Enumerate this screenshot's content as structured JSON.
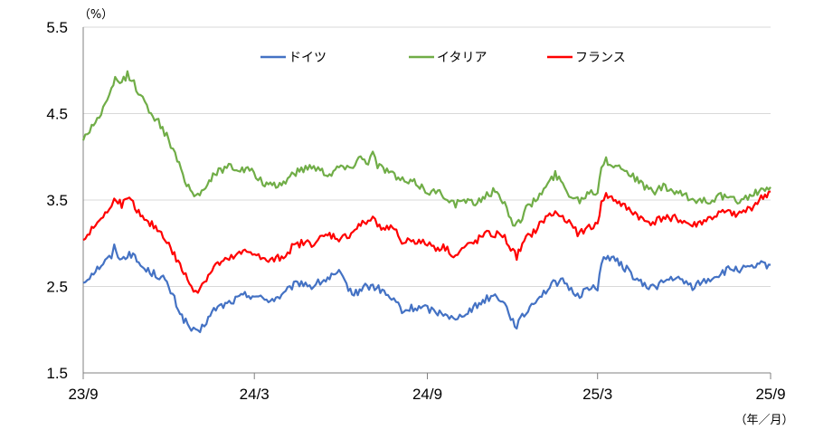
{
  "chart_data": {
    "type": "line",
    "y_unit": "（%）",
    "x_unit": "（年／月）",
    "ylim": [
      1.5,
      5.5
    ],
    "yticks": [
      "5.5",
      "4.5",
      "3.5",
      "2.5",
      "1.5"
    ],
    "x_range": [
      "2023-09-01",
      "2025-09-01"
    ],
    "xticks": [
      {
        "date": "2023-09-01",
        "label": "23/9"
      },
      {
        "date": "2024-03-01",
        "label": "24/3"
      },
      {
        "date": "2024-09-01",
        "label": "24/9"
      },
      {
        "date": "2025-03-01",
        "label": "25/3"
      },
      {
        "date": "2025-09-01",
        "label": "25/9"
      }
    ],
    "grid": true,
    "legend_position": "top-center",
    "series": [
      {
        "name": "ドイツ",
        "color": "#4472C4",
        "points": [
          [
            "2023-09-01",
            2.55
          ],
          [
            "2023-09-10",
            2.65
          ],
          [
            "2023-09-20",
            2.75
          ],
          [
            "2023-10-01",
            2.85
          ],
          [
            "2023-10-04",
            2.95
          ],
          [
            "2023-10-12",
            2.8
          ],
          [
            "2023-10-20",
            2.9
          ],
          [
            "2023-10-28",
            2.8
          ],
          [
            "2023-11-05",
            2.7
          ],
          [
            "2023-11-15",
            2.65
          ],
          [
            "2023-11-25",
            2.6
          ],
          [
            "2023-12-05",
            2.4
          ],
          [
            "2023-12-15",
            2.15
          ],
          [
            "2023-12-25",
            2.0
          ],
          [
            "2024-01-01",
            1.95
          ],
          [
            "2024-01-10",
            2.1
          ],
          [
            "2024-01-20",
            2.25
          ],
          [
            "2024-02-01",
            2.3
          ],
          [
            "2024-02-10",
            2.35
          ],
          [
            "2024-02-20",
            2.4
          ],
          [
            "2024-03-01",
            2.4
          ],
          [
            "2024-03-10",
            2.35
          ],
          [
            "2024-03-20",
            2.35
          ],
          [
            "2024-04-01",
            2.4
          ],
          [
            "2024-04-10",
            2.5
          ],
          [
            "2024-04-20",
            2.55
          ],
          [
            "2024-05-01",
            2.5
          ],
          [
            "2024-05-10",
            2.55
          ],
          [
            "2024-05-20",
            2.6
          ],
          [
            "2024-05-30",
            2.65
          ],
          [
            "2024-06-05",
            2.55
          ],
          [
            "2024-06-15",
            2.4
          ],
          [
            "2024-06-25",
            2.5
          ],
          [
            "2024-07-05",
            2.5
          ],
          [
            "2024-07-15",
            2.45
          ],
          [
            "2024-07-25",
            2.35
          ],
          [
            "2024-08-01",
            2.3
          ],
          [
            "2024-08-05",
            2.2
          ],
          [
            "2024-08-15",
            2.25
          ],
          [
            "2024-08-25",
            2.25
          ],
          [
            "2024-09-01",
            2.25
          ],
          [
            "2024-09-10",
            2.2
          ],
          [
            "2024-09-20",
            2.2
          ],
          [
            "2024-10-01",
            2.1
          ],
          [
            "2024-10-10",
            2.2
          ],
          [
            "2024-10-20",
            2.25
          ],
          [
            "2024-11-01",
            2.35
          ],
          [
            "2024-11-10",
            2.4
          ],
          [
            "2024-11-20",
            2.35
          ],
          [
            "2024-12-01",
            2.1
          ],
          [
            "2024-12-05",
            2.05
          ],
          [
            "2024-12-15",
            2.2
          ],
          [
            "2024-12-25",
            2.35
          ],
          [
            "2025-01-05",
            2.45
          ],
          [
            "2025-01-15",
            2.55
          ],
          [
            "2025-01-25",
            2.55
          ],
          [
            "2025-02-01",
            2.45
          ],
          [
            "2025-02-10",
            2.4
          ],
          [
            "2025-02-20",
            2.5
          ],
          [
            "2025-03-01",
            2.45
          ],
          [
            "2025-03-05",
            2.8
          ],
          [
            "2025-03-10",
            2.85
          ],
          [
            "2025-03-20",
            2.8
          ],
          [
            "2025-04-01",
            2.7
          ],
          [
            "2025-04-10",
            2.6
          ],
          [
            "2025-04-20",
            2.5
          ],
          [
            "2025-05-01",
            2.5
          ],
          [
            "2025-05-10",
            2.55
          ],
          [
            "2025-05-20",
            2.6
          ],
          [
            "2025-06-01",
            2.55
          ],
          [
            "2025-06-10",
            2.5
          ],
          [
            "2025-06-20",
            2.55
          ],
          [
            "2025-07-01",
            2.6
          ],
          [
            "2025-07-10",
            2.65
          ],
          [
            "2025-07-20",
            2.7
          ],
          [
            "2025-08-01",
            2.7
          ],
          [
            "2025-08-10",
            2.7
          ],
          [
            "2025-08-20",
            2.75
          ],
          [
            "2025-09-01",
            2.75
          ]
        ]
      },
      {
        "name": "イタリア",
        "color": "#70AD47",
        "points": [
          [
            "2023-09-01",
            4.2
          ],
          [
            "2023-09-10",
            4.35
          ],
          [
            "2023-09-20",
            4.5
          ],
          [
            "2023-10-01",
            4.75
          ],
          [
            "2023-10-05",
            4.9
          ],
          [
            "2023-10-10",
            4.85
          ],
          [
            "2023-10-18",
            4.95
          ],
          [
            "2023-10-25",
            4.85
          ],
          [
            "2023-11-01",
            4.7
          ],
          [
            "2023-11-10",
            4.55
          ],
          [
            "2023-11-20",
            4.4
          ],
          [
            "2023-12-01",
            4.2
          ],
          [
            "2023-12-10",
            3.95
          ],
          [
            "2023-12-20",
            3.7
          ],
          [
            "2023-12-28",
            3.55
          ],
          [
            "2024-01-05",
            3.6
          ],
          [
            "2024-01-15",
            3.75
          ],
          [
            "2024-01-25",
            3.85
          ],
          [
            "2024-02-05",
            3.9
          ],
          [
            "2024-02-15",
            3.85
          ],
          [
            "2024-02-25",
            3.85
          ],
          [
            "2024-03-05",
            3.75
          ],
          [
            "2024-03-10",
            3.7
          ],
          [
            "2024-03-20",
            3.65
          ],
          [
            "2024-04-01",
            3.7
          ],
          [
            "2024-04-10",
            3.8
          ],
          [
            "2024-04-20",
            3.85
          ],
          [
            "2024-05-01",
            3.9
          ],
          [
            "2024-05-10",
            3.85
          ],
          [
            "2024-05-20",
            3.8
          ],
          [
            "2024-06-01",
            3.9
          ],
          [
            "2024-06-10",
            3.85
          ],
          [
            "2024-06-20",
            4.0
          ],
          [
            "2024-06-30",
            3.95
          ],
          [
            "2024-07-05",
            4.05
          ],
          [
            "2024-07-10",
            3.9
          ],
          [
            "2024-07-20",
            3.85
          ],
          [
            "2024-08-01",
            3.75
          ],
          [
            "2024-08-10",
            3.7
          ],
          [
            "2024-08-20",
            3.7
          ],
          [
            "2024-09-01",
            3.6
          ],
          [
            "2024-09-10",
            3.6
          ],
          [
            "2024-09-20",
            3.55
          ],
          [
            "2024-10-01",
            3.45
          ],
          [
            "2024-10-10",
            3.5
          ],
          [
            "2024-10-20",
            3.45
          ],
          [
            "2024-11-01",
            3.55
          ],
          [
            "2024-11-10",
            3.6
          ],
          [
            "2024-11-20",
            3.5
          ],
          [
            "2024-12-01",
            3.25
          ],
          [
            "2024-12-05",
            3.2
          ],
          [
            "2024-12-15",
            3.4
          ],
          [
            "2024-12-25",
            3.5
          ],
          [
            "2025-01-05",
            3.65
          ],
          [
            "2025-01-15",
            3.8
          ],
          [
            "2025-01-25",
            3.65
          ],
          [
            "2025-02-01",
            3.55
          ],
          [
            "2025-02-10",
            3.5
          ],
          [
            "2025-02-20",
            3.6
          ],
          [
            "2025-03-01",
            3.6
          ],
          [
            "2025-03-05",
            3.9
          ],
          [
            "2025-03-10",
            3.95
          ],
          [
            "2025-03-20",
            3.9
          ],
          [
            "2025-04-01",
            3.85
          ],
          [
            "2025-04-10",
            3.75
          ],
          [
            "2025-04-20",
            3.65
          ],
          [
            "2025-05-01",
            3.6
          ],
          [
            "2025-05-10",
            3.65
          ],
          [
            "2025-05-20",
            3.6
          ],
          [
            "2025-06-01",
            3.55
          ],
          [
            "2025-06-10",
            3.5
          ],
          [
            "2025-06-20",
            3.5
          ],
          [
            "2025-07-01",
            3.5
          ],
          [
            "2025-07-10",
            3.55
          ],
          [
            "2025-07-20",
            3.5
          ],
          [
            "2025-08-01",
            3.5
          ],
          [
            "2025-08-10",
            3.55
          ],
          [
            "2025-08-20",
            3.6
          ],
          [
            "2025-09-01",
            3.65
          ]
        ]
      },
      {
        "name": "フランス",
        "color": "#FF0000",
        "points": [
          [
            "2023-09-01",
            3.05
          ],
          [
            "2023-09-10",
            3.15
          ],
          [
            "2023-09-20",
            3.3
          ],
          [
            "2023-10-01",
            3.4
          ],
          [
            "2023-10-04",
            3.55
          ],
          [
            "2023-10-12",
            3.45
          ],
          [
            "2023-10-20",
            3.5
          ],
          [
            "2023-10-28",
            3.4
          ],
          [
            "2023-11-05",
            3.25
          ],
          [
            "2023-11-15",
            3.2
          ],
          [
            "2023-11-25",
            3.1
          ],
          [
            "2023-12-05",
            2.9
          ],
          [
            "2023-12-15",
            2.7
          ],
          [
            "2023-12-25",
            2.5
          ],
          [
            "2024-01-01",
            2.45
          ],
          [
            "2024-01-10",
            2.6
          ],
          [
            "2024-01-20",
            2.75
          ],
          [
            "2024-02-01",
            2.8
          ],
          [
            "2024-02-10",
            2.85
          ],
          [
            "2024-02-20",
            2.9
          ],
          [
            "2024-03-01",
            2.9
          ],
          [
            "2024-03-10",
            2.8
          ],
          [
            "2024-03-20",
            2.8
          ],
          [
            "2024-04-01",
            2.85
          ],
          [
            "2024-04-10",
            2.95
          ],
          [
            "2024-04-20",
            3.0
          ],
          [
            "2024-05-01",
            3.0
          ],
          [
            "2024-05-10",
            3.05
          ],
          [
            "2024-05-20",
            3.1
          ],
          [
            "2024-06-01",
            3.05
          ],
          [
            "2024-06-10",
            3.1
          ],
          [
            "2024-06-20",
            3.2
          ],
          [
            "2024-06-30",
            3.25
          ],
          [
            "2024-07-05",
            3.3
          ],
          [
            "2024-07-10",
            3.2
          ],
          [
            "2024-07-20",
            3.2
          ],
          [
            "2024-08-01",
            3.1
          ],
          [
            "2024-08-05",
            3.0
          ],
          [
            "2024-08-15",
            3.05
          ],
          [
            "2024-08-25",
            3.0
          ],
          [
            "2024-09-01",
            3.0
          ],
          [
            "2024-09-10",
            2.95
          ],
          [
            "2024-09-20",
            2.95
          ],
          [
            "2024-10-01",
            2.85
          ],
          [
            "2024-10-10",
            2.95
          ],
          [
            "2024-10-20",
            3.0
          ],
          [
            "2024-11-01",
            3.1
          ],
          [
            "2024-11-10",
            3.1
          ],
          [
            "2024-11-20",
            3.1
          ],
          [
            "2024-12-01",
            2.9
          ],
          [
            "2024-12-05",
            2.85
          ],
          [
            "2024-12-15",
            3.05
          ],
          [
            "2024-12-25",
            3.15
          ],
          [
            "2025-01-05",
            3.3
          ],
          [
            "2025-01-15",
            3.35
          ],
          [
            "2025-01-25",
            3.3
          ],
          [
            "2025-02-01",
            3.2
          ],
          [
            "2025-02-10",
            3.1
          ],
          [
            "2025-02-20",
            3.2
          ],
          [
            "2025-03-01",
            3.2
          ],
          [
            "2025-03-05",
            3.5
          ],
          [
            "2025-03-10",
            3.55
          ],
          [
            "2025-03-20",
            3.5
          ],
          [
            "2025-04-01",
            3.4
          ],
          [
            "2025-04-10",
            3.35
          ],
          [
            "2025-04-20",
            3.25
          ],
          [
            "2025-05-01",
            3.25
          ],
          [
            "2025-05-10",
            3.3
          ],
          [
            "2025-05-20",
            3.3
          ],
          [
            "2025-06-01",
            3.25
          ],
          [
            "2025-06-10",
            3.2
          ],
          [
            "2025-06-20",
            3.25
          ],
          [
            "2025-07-01",
            3.3
          ],
          [
            "2025-07-10",
            3.35
          ],
          [
            "2025-07-20",
            3.35
          ],
          [
            "2025-08-01",
            3.35
          ],
          [
            "2025-08-10",
            3.4
          ],
          [
            "2025-08-20",
            3.5
          ],
          [
            "2025-09-01",
            3.6
          ]
        ]
      }
    ]
  }
}
